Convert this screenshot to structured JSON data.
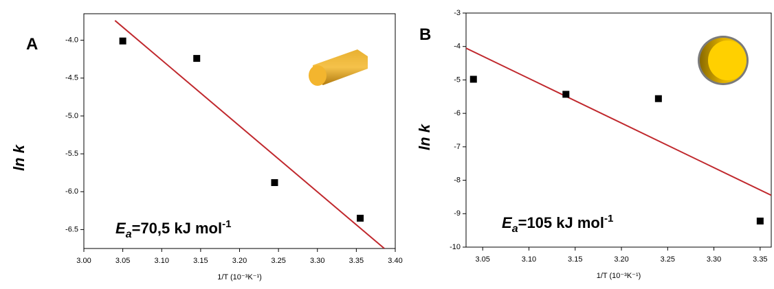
{
  "chart_data": [
    {
      "type": "scatter",
      "panel_label": "A",
      "x_label": "1/T (10⁻³K⁻¹)",
      "y_label": "ln k",
      "annotation": {
        "symbol": "E",
        "subscript": "a",
        "text": "=70,5 kJ mol",
        "superscript": "-1"
      },
      "xlim": [
        3.0,
        3.4
      ],
      "ylim": [
        -6.75,
        -3.65
      ],
      "xticks": [
        {
          "value": 3.0,
          "label": "3.00"
        },
        3.05,
        {
          "value": 3.1,
          "label": "3.10"
        },
        3.15,
        {
          "value": 3.2,
          "label": "3.20"
        },
        3.25,
        {
          "value": 3.3,
          "label": "3.30"
        },
        3.35,
        {
          "value": 3.4,
          "label": "3.40"
        }
      ],
      "yticks": [
        {
          "value": -6.5,
          "label": "-6.5"
        },
        {
          "value": -6,
          "label": "-6.0"
        },
        {
          "value": -5.5,
          "label": "-5.5"
        },
        {
          "value": -5,
          "label": "-5.0"
        },
        {
          "value": -4.5,
          "label": "-4.5"
        },
        {
          "value": -4,
          "label": "-4.0"
        }
      ],
      "points": {
        "x": [
          3.05,
          3.145,
          3.245,
          3.355
        ],
        "y": [
          -4.01,
          -4.24,
          -5.88,
          -6.35
        ],
        "color": "#000000"
      },
      "fit_line": {
        "x": [
          3.04,
          3.386
        ],
        "y": [
          -3.74,
          -6.75
        ],
        "color": "#c0282d"
      }
    },
    {
      "type": "scatter",
      "panel_label": "B",
      "x_label": "1/T (10⁻³K⁻¹)",
      "y_label": "ln k",
      "annotation": {
        "symbol": "E",
        "subscript": "a",
        "text": "=105 kJ mol",
        "superscript": "-1"
      },
      "xlim": [
        3.032,
        3.362
      ],
      "ylim": [
        -10,
        -3
      ],
      "xticks": [
        3.05,
        {
          "value": 3.1,
          "label": "3.10"
        },
        3.15,
        {
          "value": 3.2,
          "label": "3.20"
        },
        3.25,
        {
          "value": 3.3,
          "label": "3.30"
        },
        3.35
      ],
      "yticks": [
        -10,
        -9,
        -8,
        -7,
        -6,
        -5,
        -4,
        -3
      ],
      "points": {
        "x": [
          3.04,
          3.14,
          3.24,
          3.35
        ],
        "y": [
          -4.98,
          -5.43,
          -5.56,
          -9.22
        ],
        "color": "#000000"
      },
      "fit_line": {
        "x": [
          3.032,
          3.362
        ],
        "y": [
          -4.05,
          -8.45
        ],
        "color": "#c0282d"
      }
    }
  ]
}
